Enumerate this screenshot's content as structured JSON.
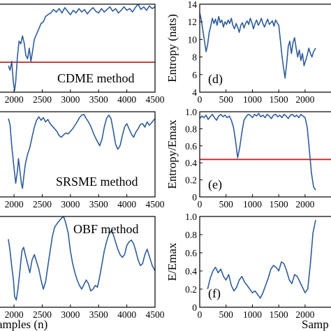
{
  "chart_data": [
    {
      "type": "line",
      "annotation": "CDME method",
      "xlabel": "",
      "ylabel": "",
      "xlim": [
        1900,
        4500
      ],
      "ylim": [
        0,
        1
      ],
      "xticks": [
        2000,
        2500,
        3000,
        3500,
        4000,
        4500
      ],
      "xtick_labels": [
        "2000",
        "2500",
        "3000",
        "3500",
        "4000",
        "4500"
      ],
      "threshold": 0.34,
      "series": [
        {
          "color": "#2f5d9a",
          "x": [
            1900,
            1930,
            1960,
            1990,
            2010,
            2030,
            2060,
            2090,
            2120,
            2150,
            2180,
            2210,
            2240,
            2270,
            2300,
            2330,
            2360,
            2400,
            2440,
            2480,
            2520,
            2560,
            2600,
            2650,
            2700,
            2750,
            2800,
            2850,
            2900,
            2950,
            3000,
            3050,
            3100,
            3150,
            3200,
            3250,
            3300,
            3350,
            3400,
            3450,
            3500,
            3550,
            3600,
            3650,
            3700,
            3750,
            3800,
            3850,
            3900,
            3950,
            4000,
            4050,
            4100,
            4150,
            4200,
            4250,
            4300,
            4350,
            4400,
            4450,
            4500
          ],
          "y": [
            0.3,
            0.25,
            0.35,
            0.1,
            0.02,
            0.12,
            0.4,
            0.58,
            0.55,
            0.64,
            0.56,
            0.42,
            0.38,
            0.5,
            0.35,
            0.47,
            0.6,
            0.66,
            0.72,
            0.78,
            0.8,
            0.86,
            0.88,
            0.9,
            0.94,
            0.91,
            0.95,
            0.9,
            0.96,
            0.92,
            0.88,
            0.93,
            0.9,
            0.95,
            0.91,
            0.94,
            0.89,
            0.93,
            0.96,
            0.92,
            0.9,
            0.95,
            0.91,
            0.94,
            0.97,
            0.92,
            0.95,
            0.9,
            0.93,
            0.97,
            0.93,
            0.95,
            0.91,
            0.96,
            1.0,
            0.94,
            0.97,
            0.93,
            0.98,
            0.95,
            0.97
          ]
        }
      ]
    },
    {
      "type": "line",
      "annotation": "SRSME method",
      "xlabel": "",
      "ylabel": "",
      "xlim": [
        1900,
        4500
      ],
      "ylim": [
        0,
        1
      ],
      "xticks": [
        2000,
        2500,
        3000,
        3500,
        4000,
        4500
      ],
      "xtick_labels": [
        "2000",
        "2500",
        "3000",
        "3500",
        "4000",
        "4500"
      ],
      "series": [
        {
          "color": "#2f5d9a",
          "x": [
            1900,
            1930,
            1960,
            1990,
            2010,
            2030,
            2060,
            2080,
            2100,
            2130,
            2150,
            2170,
            2200,
            2240,
            2280,
            2320,
            2360,
            2400,
            2440,
            2480,
            2520,
            2560,
            2600,
            2640,
            2680,
            2720,
            2760,
            2800,
            2840,
            2880,
            2920,
            2960,
            3000,
            3040,
            3080,
            3120,
            3160,
            3200,
            3240,
            3280,
            3320,
            3360,
            3400,
            3440,
            3480,
            3520,
            3560,
            3600,
            3640,
            3680,
            3720,
            3760,
            3800,
            3840,
            3880,
            3920,
            3960,
            4000,
            4040,
            4080,
            4120,
            4160,
            4200,
            4240,
            4280,
            4320,
            4360,
            4400,
            4450,
            4500
          ],
          "y": [
            0.92,
            0.85,
            0.6,
            0.4,
            0.28,
            0.16,
            0.3,
            0.45,
            0.33,
            0.16,
            0.1,
            0.22,
            0.38,
            0.5,
            0.58,
            0.7,
            0.82,
            0.9,
            0.94,
            0.9,
            0.93,
            0.88,
            0.91,
            0.86,
            0.83,
            0.8,
            0.77,
            0.72,
            0.7,
            0.73,
            0.75,
            0.74,
            0.77,
            0.8,
            0.84,
            0.88,
            0.93,
            0.96,
            0.97,
            0.92,
            0.88,
            0.83,
            0.76,
            0.7,
            0.65,
            0.6,
            0.68,
            0.82,
            0.92,
            0.96,
            0.92,
            0.78,
            0.62,
            0.56,
            0.6,
            0.72,
            0.82,
            0.86,
            0.8,
            0.74,
            0.7,
            0.76,
            0.8,
            0.85,
            0.86,
            0.82,
            0.88,
            0.84,
            0.88,
            0.92
          ]
        }
      ]
    },
    {
      "type": "line",
      "annotation": "OBF method",
      "xlabel": "amples (n)",
      "ylabel": "",
      "xlim": [
        1900,
        4500
      ],
      "ylim": [
        0,
        1
      ],
      "xticks": [
        2000,
        2500,
        3000,
        3500,
        4000,
        4500
      ],
      "xtick_labels": [
        "2000",
        "2500",
        "3000",
        "3500",
        "4000",
        "4500"
      ],
      "series": [
        {
          "color": "#2f5d9a",
          "x": [
            1900,
            1930,
            1960,
            1990,
            2010,
            2040,
            2070,
            2100,
            2140,
            2170,
            2200,
            2240,
            2280,
            2320,
            2360,
            2400,
            2440,
            2480,
            2520,
            2560,
            2600,
            2640,
            2680,
            2720,
            2760,
            2800,
            2840,
            2880,
            2920,
            2960,
            3000,
            3040,
            3080,
            3120,
            3160,
            3200,
            3240,
            3280,
            3320,
            3360,
            3400,
            3440,
            3480,
            3520,
            3560,
            3600,
            3640,
            3680,
            3720,
            3760,
            3800,
            3840,
            3880,
            3920,
            3960,
            4000,
            4040,
            4080,
            4120,
            4160,
            4200,
            4240,
            4280,
            4320,
            4360,
            4400,
            4450,
            4500
          ],
          "y": [
            0.75,
            0.62,
            0.45,
            0.3,
            0.12,
            0.08,
            0.2,
            0.38,
            0.62,
            0.66,
            0.58,
            0.48,
            0.38,
            0.52,
            0.58,
            0.5,
            0.42,
            0.3,
            0.2,
            0.28,
            0.45,
            0.62,
            0.78,
            0.88,
            0.92,
            0.95,
            0.98,
            1.0,
            0.92,
            0.82,
            0.62,
            0.48,
            0.38,
            0.3,
            0.24,
            0.2,
            0.25,
            0.3,
            0.26,
            0.18,
            0.2,
            0.24,
            0.22,
            0.34,
            0.48,
            0.62,
            0.72,
            0.8,
            0.84,
            0.8,
            0.72,
            0.64,
            0.58,
            0.55,
            0.58,
            0.68,
            0.72,
            0.74,
            0.7,
            0.62,
            0.52,
            0.46,
            0.48,
            0.58,
            0.64,
            0.56,
            0.46,
            0.4
          ]
        }
      ]
    },
    {
      "type": "line",
      "annotation": "(d)",
      "xlabel": "",
      "ylabel": "Entropy (nats)",
      "xlim": [
        0,
        2200
      ],
      "ylim": [
        4,
        14
      ],
      "xticks": [
        0,
        500,
        1000,
        1500,
        2000
      ],
      "xtick_labels": [
        "0",
        "500",
        "1000",
        "1500",
        "2000"
      ],
      "yticks": [
        4,
        6,
        8,
        10,
        12,
        14
      ],
      "ytick_labels": [
        "4",
        "6",
        "8",
        "10",
        "12",
        "14"
      ],
      "series": [
        {
          "color": "#2f5d9a",
          "x": [
            0,
            30,
            60,
            90,
            120,
            150,
            180,
            210,
            240,
            270,
            300,
            330,
            360,
            390,
            420,
            450,
            480,
            510,
            540,
            570,
            600,
            630,
            660,
            690,
            720,
            750,
            780,
            810,
            840,
            870,
            900,
            930,
            960,
            990,
            1020,
            1050,
            1080,
            1110,
            1140,
            1170,
            1200,
            1230,
            1260,
            1290,
            1320,
            1350,
            1380,
            1410,
            1440,
            1470,
            1500,
            1530,
            1560,
            1590,
            1620,
            1650,
            1680,
            1710,
            1740,
            1770,
            1800,
            1830,
            1860,
            1890,
            1920,
            1950,
            1980,
            2010,
            2040,
            2070,
            2100,
            2130,
            2160,
            2200
          ],
          "y": [
            13.0,
            12.2,
            11.0,
            9.8,
            8.6,
            9.4,
            10.8,
            11.5,
            12.4,
            11.8,
            12.3,
            11.6,
            12.6,
            11.9,
            12.2,
            11.4,
            12.0,
            11.7,
            12.2,
            11.8,
            12.4,
            11.6,
            11.2,
            11.8,
            11.4,
            10.8,
            11.6,
            11.9,
            11.3,
            11.8,
            12.1,
            11.7,
            12.4,
            11.9,
            11.2,
            11.8,
            12.2,
            11.6,
            11.9,
            12.4,
            11.8,
            11.4,
            11.9,
            12.3,
            11.7,
            11.9,
            12.1,
            11.5,
            12.2,
            11.9,
            11.6,
            10.0,
            8.2,
            6.8,
            5.6,
            7.2,
            9.2,
            9.8,
            8.4,
            9.6,
            10.2,
            9.0,
            8.0,
            8.8,
            7.6,
            8.4,
            7.0,
            7.6,
            8.2,
            9.0,
            8.4,
            8.0,
            8.6,
            9.0
          ]
        }
      ]
    },
    {
      "type": "line",
      "annotation": "(e)",
      "xlabel": "",
      "ylabel": "Entropy/Emax",
      "xlim": [
        0,
        2200
      ],
      "ylim": [
        0,
        1
      ],
      "xticks": [
        0,
        500,
        1000,
        1500,
        2000
      ],
      "xtick_labels": [
        "0",
        "500",
        "1000",
        "1500",
        "2000"
      ],
      "yticks": [
        0,
        0.2,
        0.4,
        0.6,
        0.8,
        1.0
      ],
      "ytick_labels": [
        "0",
        "0.2",
        "0.4",
        "0.6",
        "0.8",
        "1.0"
      ],
      "threshold": 0.44,
      "series": [
        {
          "color": "#2f5d9a",
          "x": [
            0,
            40,
            80,
            120,
            160,
            200,
            240,
            280,
            320,
            360,
            400,
            440,
            480,
            520,
            560,
            600,
            640,
            680,
            720,
            760,
            800,
            840,
            880,
            920,
            960,
            1000,
            1040,
            1080,
            1120,
            1160,
            1200,
            1240,
            1280,
            1320,
            1360,
            1400,
            1440,
            1480,
            1520,
            1560,
            1600,
            1640,
            1680,
            1720,
            1760,
            1800,
            1840,
            1880,
            1920,
            1960,
            2000,
            2040,
            2080,
            2120,
            2160,
            2200
          ],
          "y": [
            0.92,
            0.95,
            0.93,
            0.96,
            0.91,
            0.94,
            0.97,
            0.93,
            0.9,
            0.95,
            0.97,
            0.94,
            0.96,
            0.93,
            0.95,
            0.9,
            0.82,
            0.66,
            0.46,
            0.58,
            0.76,
            0.9,
            0.94,
            0.97,
            0.96,
            0.93,
            0.97,
            0.95,
            0.98,
            0.94,
            0.96,
            0.93,
            0.97,
            0.95,
            0.92,
            0.96,
            0.97,
            0.94,
            0.96,
            0.93,
            0.97,
            0.95,
            0.92,
            0.96,
            0.97,
            0.94,
            0.96,
            0.93,
            0.97,
            0.95,
            0.93,
            0.82,
            0.56,
            0.28,
            0.12,
            0.08
          ]
        }
      ]
    },
    {
      "type": "line",
      "annotation": "(f)",
      "xlabel": "Samp",
      "ylabel": "E/Emax",
      "xlim": [
        0,
        2200
      ],
      "ylim": [
        0,
        1
      ],
      "xticks": [
        0,
        500,
        1000,
        1500,
        2000
      ],
      "xtick_labels": [
        "0",
        "500",
        "1000",
        "1500",
        "2000"
      ],
      "yticks": [
        0,
        0.2,
        0.4,
        0.6,
        0.8,
        1.0
      ],
      "ytick_labels": [
        "0",
        "0.2",
        "0.4",
        "0.6",
        "0.8",
        "1.0"
      ],
      "series": [
        {
          "color": "#2f5d9a",
          "x": [
            150,
            200,
            250,
            300,
            350,
            400,
            450,
            500,
            550,
            600,
            650,
            700,
            750,
            800,
            850,
            900,
            950,
            1000,
            1050,
            1100,
            1150,
            1200,
            1250,
            1300,
            1350,
            1400,
            1450,
            1500,
            1550,
            1600,
            1650,
            1700,
            1750,
            1800,
            1850,
            1900,
            1950,
            2000,
            2050,
            2100,
            2150,
            2200
          ],
          "y": [
            0.2,
            0.32,
            0.4,
            0.44,
            0.38,
            0.42,
            0.34,
            0.3,
            0.36,
            0.24,
            0.18,
            0.22,
            0.3,
            0.34,
            0.28,
            0.24,
            0.2,
            0.16,
            0.18,
            0.14,
            0.1,
            0.16,
            0.24,
            0.32,
            0.42,
            0.46,
            0.44,
            0.4,
            0.5,
            0.48,
            0.4,
            0.3,
            0.26,
            0.36,
            0.34,
            0.28,
            0.22,
            0.16,
            0.2,
            0.48,
            0.82,
            0.96
          ]
        }
      ]
    }
  ]
}
